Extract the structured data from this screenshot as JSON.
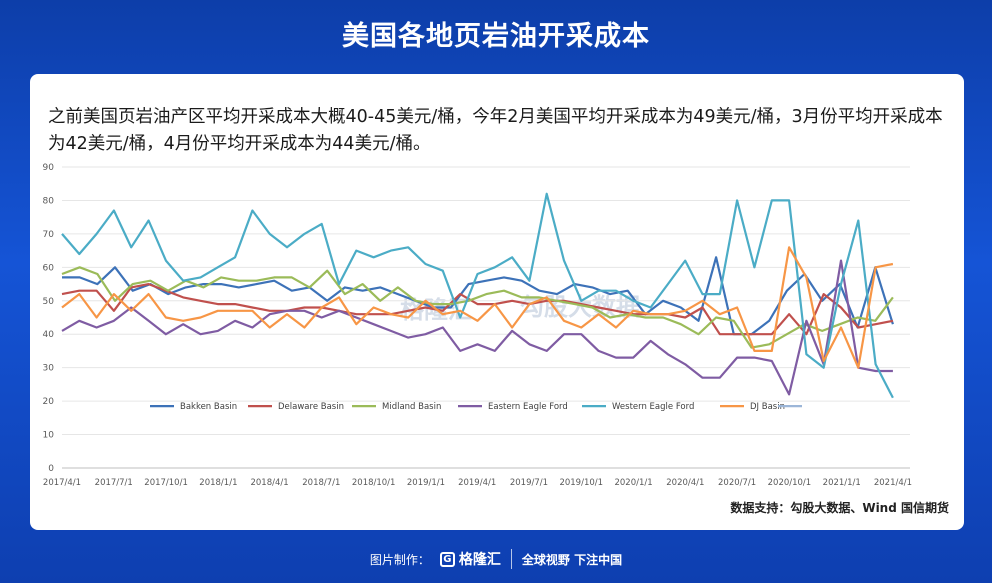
{
  "page": {
    "title": "美国各地页岩油开采成本",
    "intro": "之前美国页岩油产区平均开采成本大概40-45美元/桶，今年2月美国平均开采成本为49美元/桶，3月份平均开采成本为42美元/桶，4月份平均开采成本为44美元/桶。",
    "source": "数据支持：勾股大数据、Wind 国信期货",
    "footer": {
      "made_by": "图片制作：",
      "brand": "格隆汇",
      "slogan": "全球视野 下注中国"
    },
    "watermark": {
      "brand1": "格隆汇",
      "brand2": "勾股大数据"
    }
  },
  "chart_data": {
    "type": "line",
    "title": "",
    "xlabel": "",
    "ylabel": "",
    "ylim": [
      0,
      90
    ],
    "yticks": [
      0,
      10,
      20,
      30,
      40,
      50,
      60,
      70,
      80,
      90
    ],
    "grid": true,
    "legend_position": "bottom",
    "x_tick_labels": [
      "2017/4/1",
      "2017/7/1",
      "2017/10/1",
      "2018/1/1",
      "2018/4/1",
      "2018/7/1",
      "2018/10/1",
      "2019/1/1",
      "2019/4/1",
      "2019/7/1",
      "2019/10/1",
      "2020/1/1",
      "2020/4/1",
      "2020/7/1",
      "2020/10/1",
      "2021/1/1",
      "2021/4/1"
    ],
    "x_start": "2017/4/1",
    "x_end": "2021/5/1",
    "series": [
      {
        "name": "Bakken Basin",
        "color": "#3d72b8",
        "values": [
          57,
          57,
          55,
          60,
          53,
          55,
          52,
          54,
          55,
          55,
          54,
          55,
          56,
          53,
          54,
          50,
          54,
          53,
          54,
          52,
          50,
          48,
          48,
          55,
          56,
          57,
          56,
          53,
          52,
          55,
          54,
          52,
          53,
          46,
          50,
          48,
          44,
          63,
          40,
          40,
          44,
          53,
          58,
          50,
          55,
          42,
          60,
          43
        ]
      },
      {
        "name": "Delaware Basin",
        "color": "#c0504d",
        "values": [
          52,
          53,
          53,
          47,
          54,
          55,
          53,
          51,
          50,
          49,
          49,
          48,
          47,
          47,
          48,
          48,
          47,
          46,
          46,
          46,
          47,
          48,
          47,
          52,
          49,
          49,
          50,
          49,
          50,
          50,
          49,
          48,
          47,
          46,
          46,
          46,
          45,
          48,
          40,
          40,
          40,
          40,
          46,
          40,
          52,
          48,
          42,
          43,
          44
        ]
      },
      {
        "name": "Midland Basin",
        "color": "#9bbb59",
        "values": [
          58,
          60,
          58,
          50,
          55,
          56,
          53,
          56,
          54,
          57,
          56,
          56,
          57,
          57,
          54,
          59,
          52,
          55,
          50,
          54,
          50,
          49,
          49,
          50,
          52,
          53,
          51,
          51,
          50,
          49,
          48,
          45,
          46,
          45,
          45,
          43,
          40,
          45,
          44,
          36,
          37,
          40,
          43,
          41,
          43,
          45,
          44,
          51
        ]
      },
      {
        "name": "Eastern Eagle Ford",
        "color": "#7f5ca3",
        "values": [
          41,
          44,
          42,
          44,
          48,
          44,
          40,
          43,
          40,
          41,
          44,
          42,
          46,
          47,
          47,
          45,
          47,
          45,
          43,
          41,
          39,
          40,
          42,
          35,
          37,
          35,
          41,
          37,
          35,
          40,
          40,
          35,
          33,
          33,
          38,
          34,
          31,
          27,
          27,
          33,
          33,
          32,
          22,
          44,
          31,
          62,
          30,
          29,
          29
        ]
      },
      {
        "name": "Western Eagle Ford",
        "color": "#4bacc6",
        "values": [
          70,
          64,
          70,
          77,
          66,
          74,
          62,
          56,
          57,
          60,
          63,
          77,
          70,
          66,
          70,
          73,
          55,
          65,
          63,
          65,
          66,
          61,
          59,
          45,
          58,
          60,
          63,
          56,
          82,
          62,
          50,
          53,
          53,
          50,
          48,
          55,
          62,
          52,
          52,
          80,
          60,
          80,
          80,
          34,
          30,
          55,
          74,
          31,
          21
        ]
      },
      {
        "name": "DJ Basin",
        "color": "#f79646",
        "values": [
          48,
          52,
          45,
          52,
          47,
          52,
          45,
          44,
          45,
          47,
          47,
          47,
          42,
          46,
          42,
          48,
          51,
          43,
          48,
          46,
          45,
          50,
          46,
          47,
          44,
          49,
          42,
          49,
          51,
          44,
          42,
          46,
          42,
          47,
          46,
          46,
          47,
          50,
          46,
          48,
          35,
          35,
          66,
          57,
          32,
          42,
          30,
          60,
          61
        ]
      },
      {
        "name": "",
        "color": "#9cb6d8",
        "values": []
      }
    ]
  }
}
